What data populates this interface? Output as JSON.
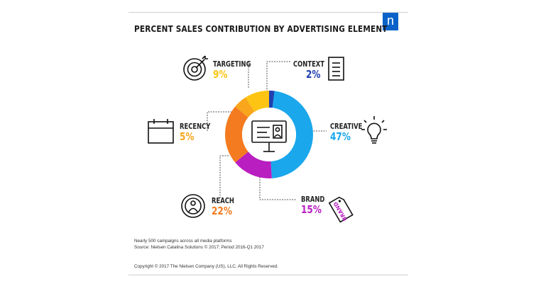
{
  "title": "PERCENT SALES CONTRIBUTION BY ADVERTISING ELEMENT",
  "logo_letter": "n",
  "colors": {
    "CONTEXT": "#1f3fb0",
    "CREATIVE": "#1aa7ec",
    "BRAND": "#b81ec0",
    "REACH": "#f47b20",
    "RECENCY": "#f9a61c",
    "TARGETING": "#fdc413",
    "icon_stroke": "#111111",
    "brand_icon_text": "#b81ec0"
  },
  "chart_data": {
    "type": "pie",
    "style": "donut",
    "title": "PERCENT SALES CONTRIBUTION BY ADVERTISING ELEMENT",
    "center_icon": "billboard-icon",
    "slices": [
      {
        "label": "CONTEXT",
        "value": 2,
        "display": "2%",
        "icon": "document-icon"
      },
      {
        "label": "CREATIVE",
        "value": 47,
        "display": "47%",
        "icon": "lightbulb-icon"
      },
      {
        "label": "BRAND",
        "value": 15,
        "display": "15%",
        "icon": "brand-tag-icon",
        "icon_text": "BRAND"
      },
      {
        "label": "REACH",
        "value": 22,
        "display": "22%",
        "icon": "broadcast-person-icon"
      },
      {
        "label": "RECENCY",
        "value": 5,
        "display": "5%",
        "icon": "calendar-icon"
      },
      {
        "label": "TARGETING",
        "value": 9,
        "display": "9%",
        "icon": "target-icon"
      }
    ]
  },
  "footnote": {
    "line1": "Nearly 500 campaigns across all media platforms",
    "line2": "Source: Nielsen Catalina Solutions © 2017; Period 2016-Q1 2017"
  },
  "copyright": "Copyright © 2017 The Nielsen Company (US), LLC. All Rights Reserved."
}
